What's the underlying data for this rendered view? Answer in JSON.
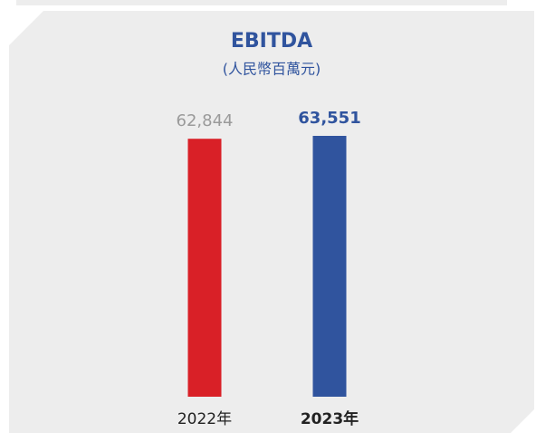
{
  "chart_data": {
    "type": "bar",
    "title": "EBITDA",
    "subtitle": "(人民幣百萬元)",
    "categories": [
      "2022年",
      "2023年"
    ],
    "values": [
      62844,
      63551
    ],
    "value_labels": [
      "62,844",
      "63,551"
    ],
    "colors": [
      "#d92027",
      "#30549e"
    ]
  }
}
